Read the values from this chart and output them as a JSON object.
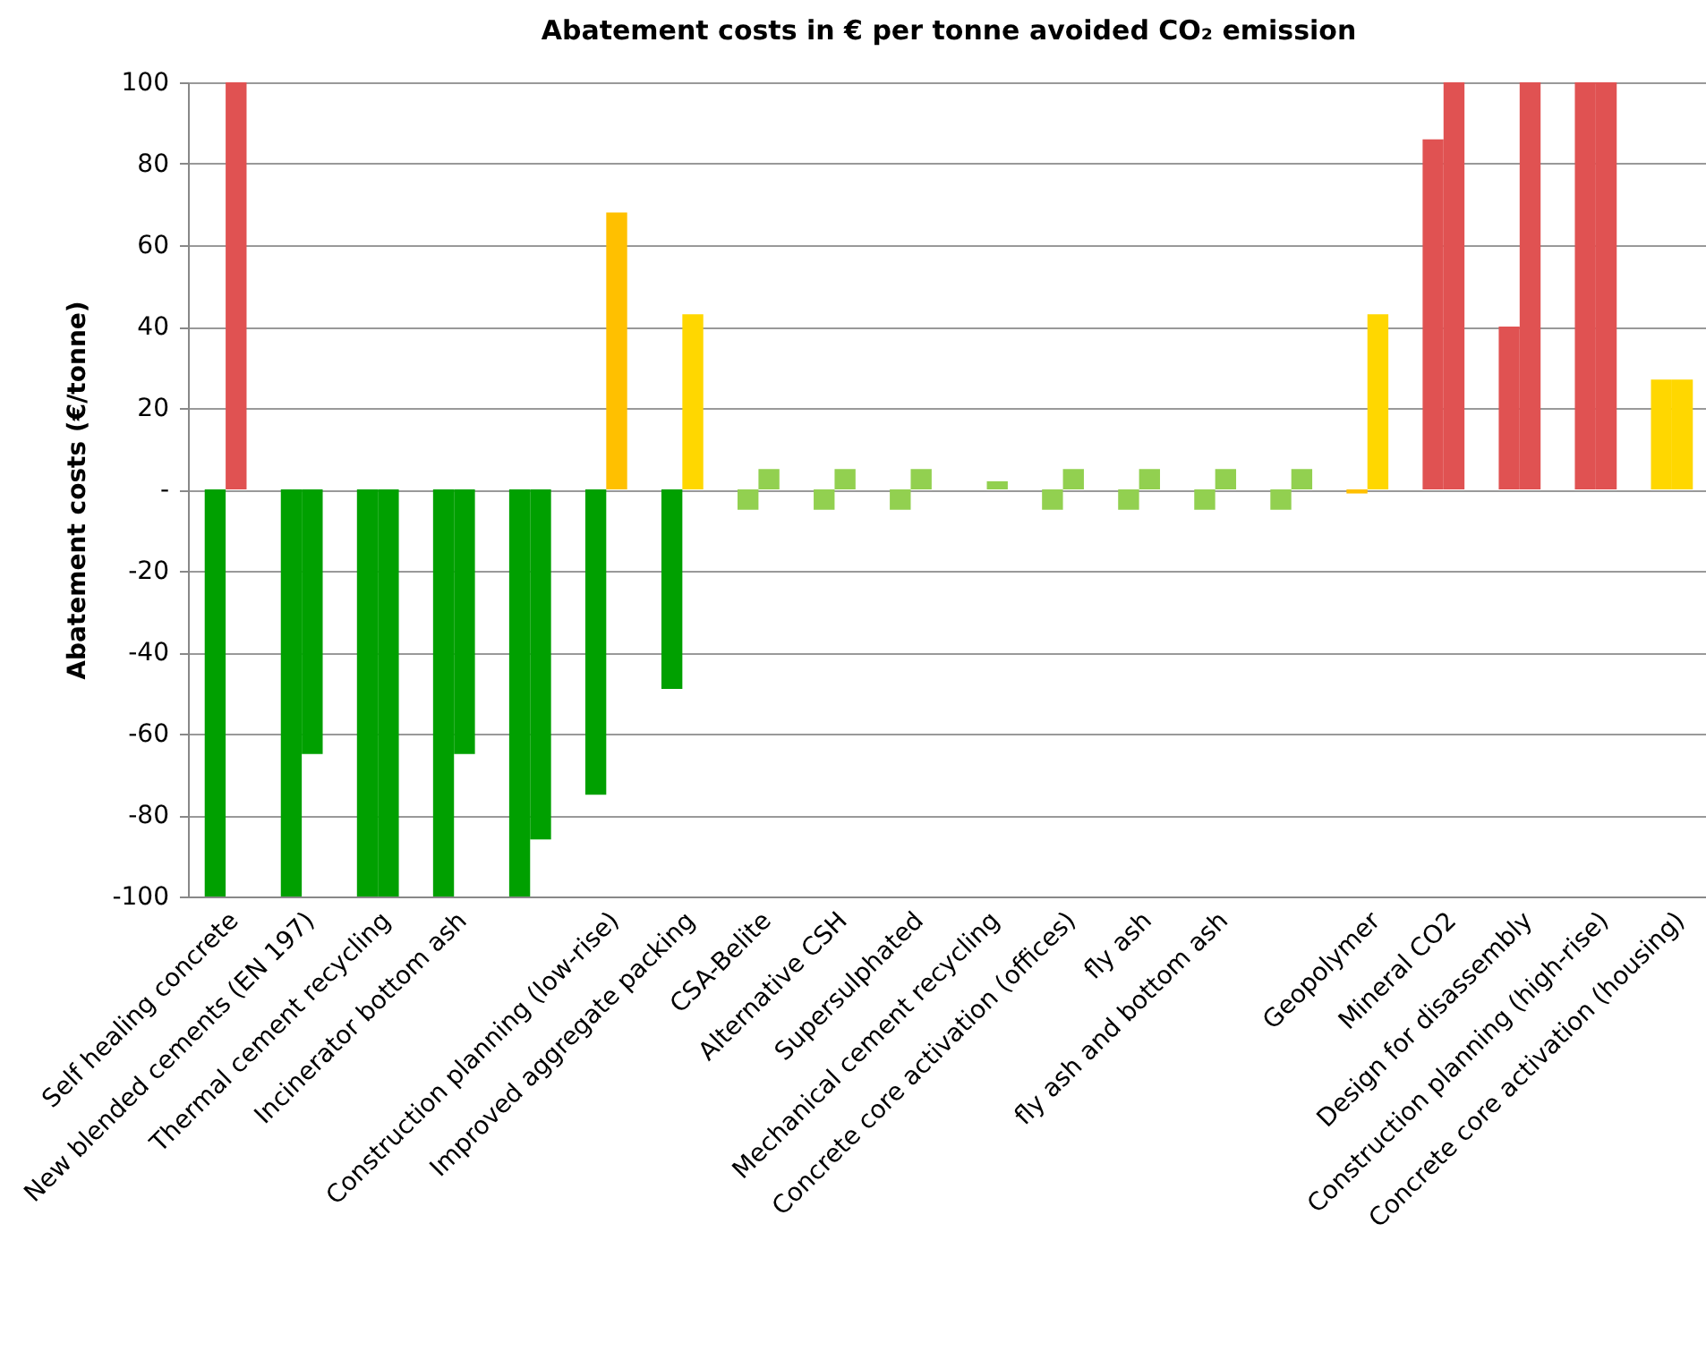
{
  "chart_data": {
    "type": "bar",
    "title": "Abatement costs  in € per tonne avoided CO₂ emission",
    "ylabel": "Abatement costs (€/tonne)",
    "categories": [
      "Self healing concrete",
      "New blended cements (EN 197)",
      "Thermal cement recycling",
      "Incinerator bottom ash",
      null,
      "Construction planning (low-rise)",
      "Improved aggregate packing",
      "CSA-Belite",
      "Alternative CSH",
      "Supersulphated",
      "Mechanical cement recycling",
      "Concrete core activation (offices)",
      "fly ash",
      "fly ash and bottom ash",
      null,
      "Geopolymer",
      "Mineral CO2",
      "Design for disassembly",
      "Construction planning (high-rise)",
      "Concrete core activation (housing)"
    ],
    "series": [
      {
        "values": [
          -100,
          -100,
          -100,
          -100,
          -100,
          -75,
          -49,
          -5,
          -5,
          -5,
          0,
          -5,
          -5,
          -5,
          -5,
          -1,
          86,
          40,
          100,
          27
        ],
        "colors": [
          "#00a000",
          "#00a000",
          "#00a000",
          "#00a000",
          "#00a000",
          "#00a000",
          "#00a000",
          "#92d050",
          "#92d050",
          "#92d050",
          "#92d050",
          "#92d050",
          "#92d050",
          "#92d050",
          "#92d050",
          "#ffc000",
          "#e05252",
          "#e05252",
          "#e05252",
          "#ffd700"
        ]
      },
      {
        "values": [
          100,
          -65,
          -100,
          -65,
          -86,
          68,
          43,
          5,
          5,
          5,
          2,
          5,
          5,
          5,
          5,
          43,
          100,
          100,
          100,
          27
        ],
        "colors": [
          "#e05252",
          "#00a000",
          "#00a000",
          "#00a000",
          "#00a000",
          "#ffc000",
          "#ffd700",
          "#92d050",
          "#92d050",
          "#92d050",
          "#92d050",
          "#92d050",
          "#92d050",
          "#92d050",
          "#92d050",
          "#ffd700",
          "#e05252",
          "#e05252",
          "#e05252",
          "#ffd700"
        ]
      }
    ],
    "ylim": [
      -100,
      100
    ],
    "yticks": [
      -100,
      -80,
      -60,
      -40,
      -20,
      {
        "value": 0,
        "label": "-"
      },
      20,
      40,
      60,
      80,
      100
    ],
    "grid": "y"
  }
}
